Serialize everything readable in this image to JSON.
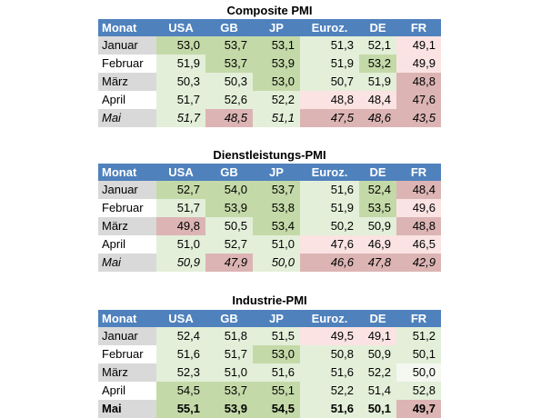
{
  "tables": [
    {
      "title": "Composite PMI",
      "header": [
        "Monat",
        "USA",
        "GB",
        "JP",
        "Euroz.",
        "DE",
        "FR"
      ],
      "rows": [
        [
          "Januar",
          "53,0",
          "53,7",
          "53,1",
          "51,3",
          "52,1",
          "49,1"
        ],
        [
          "Februar",
          "51,9",
          "53,7",
          "53,9",
          "51,9",
          "53,2",
          "49,9"
        ],
        [
          "März",
          "50,3",
          "50,3",
          "53,0",
          "50,7",
          "51,9",
          "48,8"
        ],
        [
          "April",
          "51,7",
          "52,6",
          "52,2",
          "48,8",
          "48,4",
          "47,6"
        ],
        [
          "Mai",
          "51,7",
          "48,5",
          "51,1",
          "47,5",
          "48,6",
          "43,5"
        ]
      ]
    },
    {
      "title": "Dienstleistungs-PMI",
      "header": [
        "Monat",
        "USA",
        "GB",
        "JP",
        "Euroz.",
        "DE",
        "FR"
      ],
      "rows": [
        [
          "Januar",
          "52,7",
          "54,0",
          "53,7",
          "51,6",
          "52,4",
          "48,4"
        ],
        [
          "Februar",
          "51,7",
          "53,9",
          "53,8",
          "51,9",
          "53,5",
          "49,6"
        ],
        [
          "März",
          "49,8",
          "50,5",
          "53,4",
          "50,2",
          "50,9",
          "48,8"
        ],
        [
          "April",
          "51,0",
          "52,7",
          "51,0",
          "47,6",
          "46,9",
          "46,5"
        ],
        [
          "Mai",
          "50,9",
          "47,9",
          "50,0",
          "46,6",
          "47,8",
          "42,9"
        ]
      ]
    },
    {
      "title": "Industrie-PMI",
      "header": [
        "Monat",
        "USA",
        "GB",
        "JP",
        "Euroz.",
        "DE",
        "FR"
      ],
      "rows": [
        [
          "Januar",
          "52,4",
          "51,8",
          "51,5",
          "49,5",
          "49,1",
          "51,2"
        ],
        [
          "Februar",
          "51,6",
          "51,7",
          "53,0",
          "50,8",
          "50,9",
          "50,1"
        ],
        [
          "März",
          "52,3",
          "51,0",
          "51,6",
          "51,6",
          "52,2",
          "50,0"
        ],
        [
          "April",
          "54,5",
          "53,7",
          "55,1",
          "52,2",
          "51,4",
          "52,8"
        ],
        [
          "Mai",
          "55,1",
          "53,9",
          "54,5",
          "51,6",
          "50,1",
          "49,7"
        ]
      ]
    }
  ]
}
